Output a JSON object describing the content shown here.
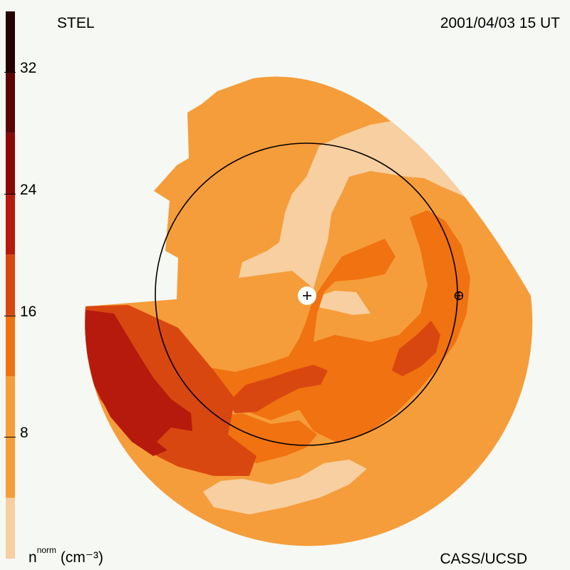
{
  "chart_data": {
    "type": "heatmap",
    "title_left": "STEL",
    "title_right": "2001/04/03 15 UT",
    "credit": "CASS/UCSD",
    "colorbar": {
      "label_main": "n",
      "label_sup": "norm",
      "label_unit": "(cm⁻³)",
      "range": [
        0,
        36
      ],
      "ticks": [
        8,
        16,
        24,
        32
      ],
      "bins": [
        {
          "from": 0,
          "to": 4,
          "color": "#f7cfa0"
        },
        {
          "from": 4,
          "to": 12,
          "color": "#f59d3a"
        },
        {
          "from": 12,
          "to": 16,
          "color": "#f07210"
        },
        {
          "from": 16,
          "to": 20,
          "color": "#d94710"
        },
        {
          "from": 20,
          "to": 24,
          "color": "#b51a0c"
        },
        {
          "from": 24,
          "to": 28,
          "color": "#8c0707"
        },
        {
          "from": 28,
          "to": 32,
          "color": "#5a0404"
        },
        {
          "from": 32,
          "to": 36,
          "color": "#260000"
        }
      ]
    },
    "markers": [
      "sun",
      "earth"
    ]
  }
}
